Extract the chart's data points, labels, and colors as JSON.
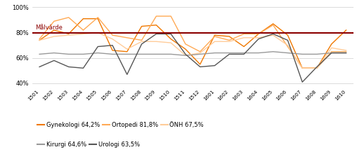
{
  "x_labels": [
    "1501",
    "1502",
    "1503",
    "1504",
    "1505",
    "1506",
    "1507",
    "1508",
    "1509",
    "1510",
    "1511",
    "1512",
    "1601",
    "1602",
    "1603",
    "1604",
    "1605",
    "1606",
    "1607",
    "1608",
    "1609",
    "1610"
  ],
  "gynekologi": [
    74,
    82,
    79,
    91,
    91,
    66,
    65,
    85,
    86,
    75,
    67,
    55,
    78,
    77,
    69,
    79,
    87,
    78,
    52,
    52,
    71,
    82
  ],
  "ortopedi": [
    75,
    89,
    92,
    82,
    92,
    78,
    76,
    74,
    93,
    93,
    71,
    65,
    77,
    74,
    79,
    79,
    86,
    69,
    52,
    52,
    65,
    65
  ],
  "onh": [
    74,
    77,
    78,
    79,
    80,
    75,
    67,
    73,
    73,
    72,
    62,
    64,
    73,
    73,
    76,
    76,
    78,
    70,
    52,
    52,
    68,
    66
  ],
  "kirurgi": [
    63,
    64,
    63,
    63,
    64,
    63,
    63,
    63,
    63,
    63,
    62,
    63,
    64,
    64,
    64,
    64,
    65,
    64,
    63,
    63,
    64,
    64
  ],
  "urologi": [
    53,
    58,
    53,
    52,
    69,
    70,
    47,
    71,
    79,
    79,
    63,
    53,
    54,
    63,
    63,
    75,
    79,
    74,
    41,
    53,
    64,
    64
  ],
  "malvarde": 80,
  "malvarde_label": "Målvärde",
  "color_gynekologi": "#F07800",
  "color_ortopedi": "#FFAA55",
  "color_onh": "#FFCC99",
  "color_kirurgi": "#999999",
  "color_urologi": "#555555",
  "color_malvarde": "#8B0000",
  "legend_entries_row1": [
    {
      "label": "Gynekologi 64,2%",
      "color": "#F07800"
    },
    {
      "label": "Ortopedi 81,8%",
      "color": "#FFAA55"
    },
    {
      "label": "ÖNH 67,5%",
      "color": "#FFCC99"
    }
  ],
  "legend_entries_row2": [
    {
      "label": "Kirurgi 64,6%",
      "color": "#999999"
    },
    {
      "label": "Urologi 63,5%",
      "color": "#555555"
    }
  ],
  "ylim": [
    38,
    102
  ],
  "yticks": [
    40,
    60,
    80,
    100
  ],
  "ytick_labels": [
    "40%",
    "60%",
    "80%",
    "100%"
  ],
  "background_color": "#ffffff",
  "grid_color": "#cccccc"
}
